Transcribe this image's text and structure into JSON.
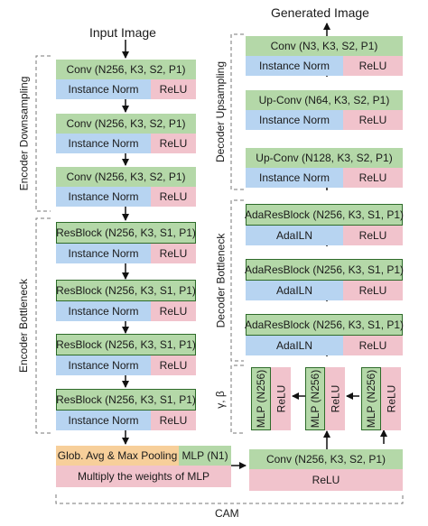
{
  "titles": {
    "input": "Input Image",
    "output": "Generated Image"
  },
  "side_labels": {
    "encoder_down": "Encoder Downsampling",
    "encoder_bottleneck": "Encoder Bottleneck",
    "decoder_up": "Decoder Upsampling",
    "decoder_bottleneck": "Decoder Bottleneck",
    "gamma_beta": "γ, β",
    "cam": "CAM"
  },
  "encoder_down": [
    {
      "conv": "Conv (N256, K3, S2, P1)",
      "norm": "Instance Norm",
      "act": "ReLU"
    },
    {
      "conv": "Conv (N256, K3, S2, P1)",
      "norm": "Instance Norm",
      "act": "ReLU"
    },
    {
      "conv": "Conv (N256, K3, S2, P1)",
      "norm": "Instance Norm",
      "act": "ReLU"
    }
  ],
  "encoder_bottleneck": [
    {
      "block": "ResBlock (N256, K3, S1, P1)",
      "norm": "Instance Norm",
      "act": "ReLU"
    },
    {
      "block": "ResBlock (N256, K3, S1, P1)",
      "norm": "Instance Norm",
      "act": "ReLU"
    },
    {
      "block": "ResBlock (N256, K3, S1, P1)",
      "norm": "Instance Norm",
      "act": "ReLU"
    },
    {
      "block": "ResBlock (N256, K3, S1, P1)",
      "norm": "Instance Norm",
      "act": "ReLU"
    }
  ],
  "decoder_up": [
    {
      "conv": "Conv (N3, K3, S2, P1)",
      "norm": "Instance Norm",
      "act": "ReLU"
    },
    {
      "conv": "Up-Conv (N64, K3, S2, P1)",
      "norm": "Instance Norm",
      "act": "ReLU"
    },
    {
      "conv": "Up-Conv (N128, K3, S2, P1)",
      "norm": "Instance Norm",
      "act": "ReLU"
    }
  ],
  "decoder_bottleneck": [
    {
      "block": "AdaResBlock (N256, K3, S1, P1)",
      "norm": "AdaILN",
      "act": "ReLU"
    },
    {
      "block": "AdaResBlock (N256, K3, S1, P1)",
      "norm": "AdaILN",
      "act": "ReLU"
    },
    {
      "block": "AdaResBlock (N256, K3, S1, P1)",
      "norm": "AdaILN",
      "act": "ReLU"
    }
  ],
  "mlp_blocks": [
    {
      "mlp": "MLP (N256)",
      "act": "ReLU"
    },
    {
      "mlp": "MLP (N256)",
      "act": "ReLU"
    },
    {
      "mlp": "MLP (N256)",
      "act": "ReLU"
    }
  ],
  "cam": {
    "pooling": "Glob. Avg & Max Pooling",
    "mlp": "MLP (N1)",
    "multiply": "Multiply the weights of MLP",
    "conv": "Conv (N256, K3, S2, P1)",
    "act": "ReLU"
  },
  "colors": {
    "conv": "#b4d8a8",
    "norm": "#b7d4f1",
    "act": "#f1c3cc",
    "pool": "#f7cf9a"
  }
}
